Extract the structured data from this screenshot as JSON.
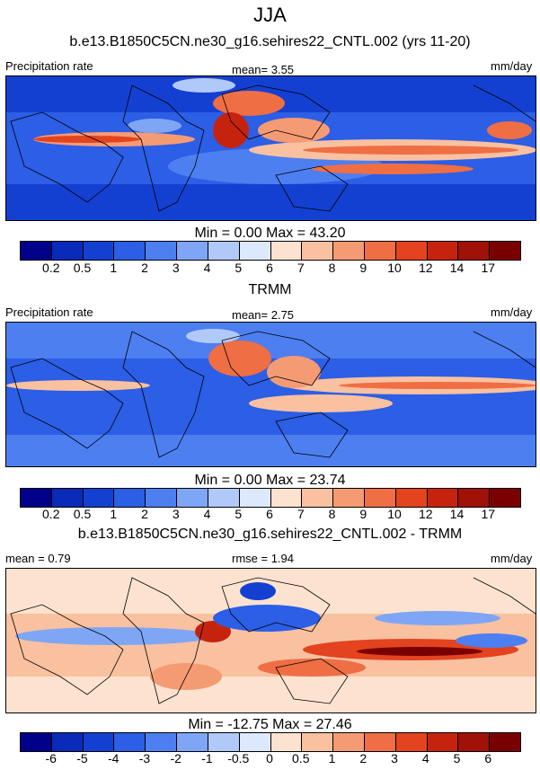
{
  "season": "JJA",
  "palette_abs": [
    "#00008b",
    "#0a2ab8",
    "#1440d2",
    "#2c5ee6",
    "#4d7ff0",
    "#7ea6f5",
    "#b0c9f8",
    "#dce8fb",
    "#fde3cf",
    "#f9c1a0",
    "#f59b73",
    "#ef6e44",
    "#e3431f",
    "#c6230f",
    "#a01108",
    "#7a0000"
  ],
  "palette_diff": [
    "#00008b",
    "#0a2ab8",
    "#1440d2",
    "#2c5ee6",
    "#4d7ff0",
    "#7ea6f5",
    "#b0c9f8",
    "#dce8fb",
    "#fde3cf",
    "#f9c1a0",
    "#f59b73",
    "#ef6e44",
    "#e3431f",
    "#c6230f",
    "#a01108",
    "#7a0000"
  ],
  "panels": [
    {
      "title": "b.e13.B1850C5CN.ne30_g16.sehires22_CNTL.002 (yrs 11-20)",
      "left_label": "Precipitation rate",
      "center_label": "mean=   3.55",
      "right_label": "mm/day",
      "minmax": "Min =   0.00 Max =  43.20",
      "ticks": [
        "0.2",
        "0.5",
        "1",
        "2",
        "3",
        "4",
        "5",
        "6",
        "7",
        "8",
        "9",
        "10",
        "12",
        "14",
        "17"
      ],
      "palette": "abs"
    },
    {
      "title": "TRMM",
      "left_label": "Precipitation rate",
      "center_label": "mean=   2.75",
      "right_label": "mm/day",
      "minmax": "Min =   0.00 Max =  23.74",
      "ticks": [
        "0.2",
        "0.5",
        "1",
        "2",
        "3",
        "4",
        "5",
        "6",
        "7",
        "8",
        "9",
        "10",
        "12",
        "14",
        "17"
      ],
      "palette": "abs"
    },
    {
      "title": "b.e13.B1850C5CN.ne30_g16.sehires22_CNTL.002 - TRMM",
      "left_label": "mean =   0.79",
      "center_label": "rmse =   1.94",
      "right_label": "mm/day",
      "minmax": "Min = -12.75 Max =  27.46",
      "ticks": [
        "-6",
        "-5",
        "-4",
        "-3",
        "-2",
        "-1",
        "-0.5",
        "0",
        "0.5",
        "1",
        "2",
        "3",
        "4",
        "5",
        "6"
      ],
      "palette": "diff"
    }
  ]
}
